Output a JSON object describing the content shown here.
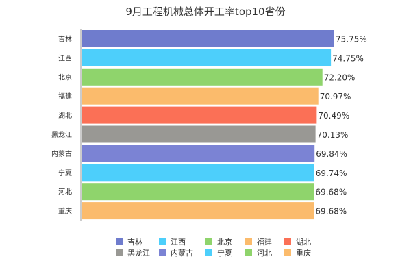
{
  "chart_data": {
    "type": "bar",
    "orientation": "horizontal",
    "title": "9月工程机械总体开工率top10省份",
    "categories": [
      "吉林",
      "江西",
      "北京",
      "福建",
      "湖北",
      "黑龙江",
      "内蒙古",
      "宁夏",
      "河北",
      "重庆"
    ],
    "values": [
      75.75,
      74.75,
      72.2,
      70.97,
      70.49,
      70.13,
      69.84,
      69.74,
      69.68,
      69.68
    ],
    "value_labels": [
      "75.75%",
      "74.75%",
      "72.20%",
      "70.97%",
      "70.49%",
      "70.13%",
      "69.84%",
      "69.74%",
      "69.68%",
      "69.68%"
    ],
    "colors": [
      "#6f7ccd",
      "#4dcffb",
      "#8fd46c",
      "#fbbb6c",
      "#fb7056",
      "#999894",
      "#7b83d4",
      "#4dcffb",
      "#8fd46c",
      "#fbbb6c"
    ],
    "legend_placement": "bottom",
    "grid": false
  }
}
